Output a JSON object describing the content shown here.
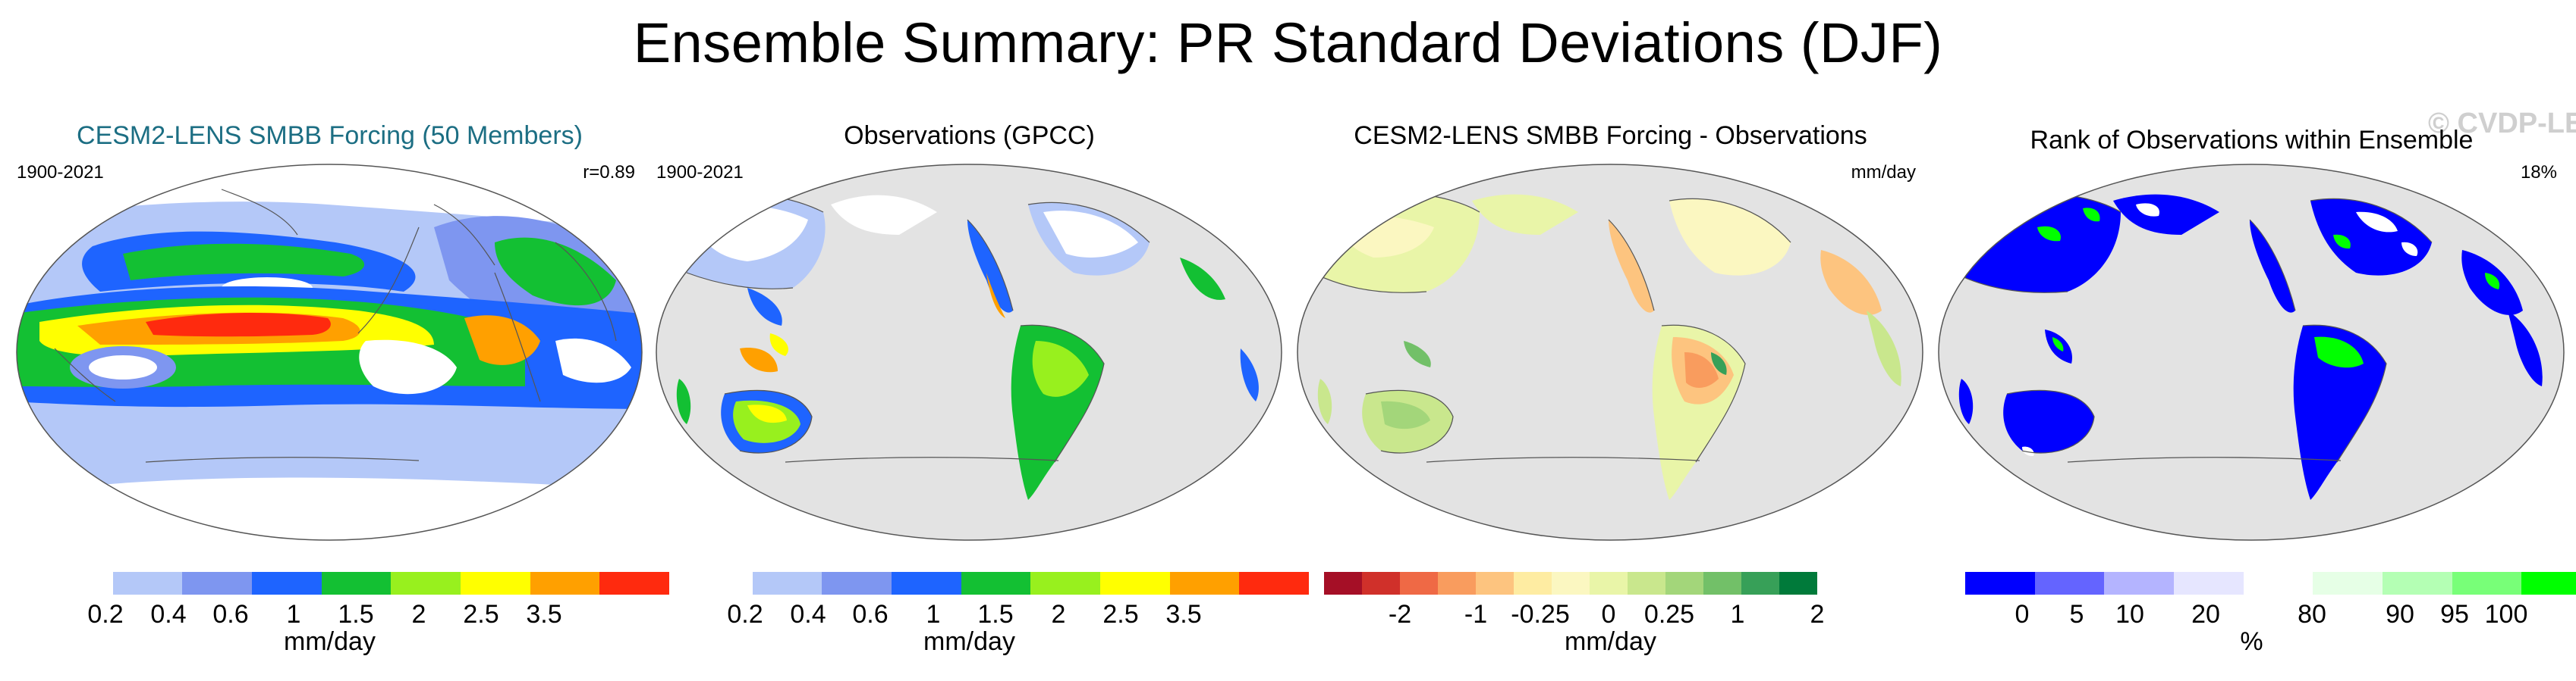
{
  "title": "Ensemble Summary: PR Standard Deviations (DJF)",
  "watermark": "© CVDP-LE",
  "panels": [
    {
      "title": "CESM2-LENS SMBB Forcing (50 Members)",
      "title_color": "#1c6e83",
      "top_left": "1900-2021",
      "top_right": "r=0.89",
      "colorbar": {
        "colors": [
          "#ffffff",
          "#b4c8f8",
          "#7e96f0",
          "#1e64ff",
          "#13c033",
          "#98f01e",
          "#ffff00",
          "#ffa000",
          "#ff2a0e"
        ],
        "ticks": [
          "0.2",
          "0.4",
          "0.6",
          "1",
          "1.5",
          "2",
          "2.5",
          "3.5"
        ],
        "unit": "mm/day"
      }
    },
    {
      "title": "Observations (GPCC)",
      "top_left": "1900-2021",
      "top_right": "",
      "colorbar": {
        "colors": [
          "#ffffff",
          "#b4c8f8",
          "#7e96f0",
          "#1e64ff",
          "#13c033",
          "#98f01e",
          "#ffff00",
          "#ffa000",
          "#ff2a0e"
        ],
        "ticks": [
          "0.2",
          "0.4",
          "0.6",
          "1",
          "1.5",
          "2",
          "2.5",
          "3.5"
        ],
        "unit": "mm/day"
      }
    },
    {
      "title": "CESM2-LENS SMBB Forcing - Observations",
      "top_left": "",
      "top_right": "mm/day",
      "colorbar": {
        "colors": [
          "#a50f26",
          "#d0302a",
          "#ef6945",
          "#f99c5e",
          "#fdc47f",
          "#feeca2",
          "#fbf7c1",
          "#e9f5a8",
          "#c9e78d",
          "#a3d67a",
          "#72c068",
          "#37a058",
          "#007a3a"
        ],
        "ticks": [
          "-2",
          "-1",
          "-0.25",
          "0",
          "0.25",
          "1",
          "2"
        ],
        "unit": "mm/day"
      }
    },
    {
      "title": "Rank of Observations within Ensemble",
      "top_left": "",
      "top_right": "18%",
      "colorbar": {
        "colors": [
          "#0000ff",
          "#6464ff",
          "#b4b4ff",
          "#e6e6ff",
          "#ffffff",
          "#e6ffe6",
          "#b4ffb4",
          "#78ff78",
          "#00ff00"
        ],
        "ticks": [
          "0",
          "5",
          "10",
          "20",
          "80",
          "90",
          "95",
          "100"
        ],
        "unit": "%"
      }
    }
  ]
}
